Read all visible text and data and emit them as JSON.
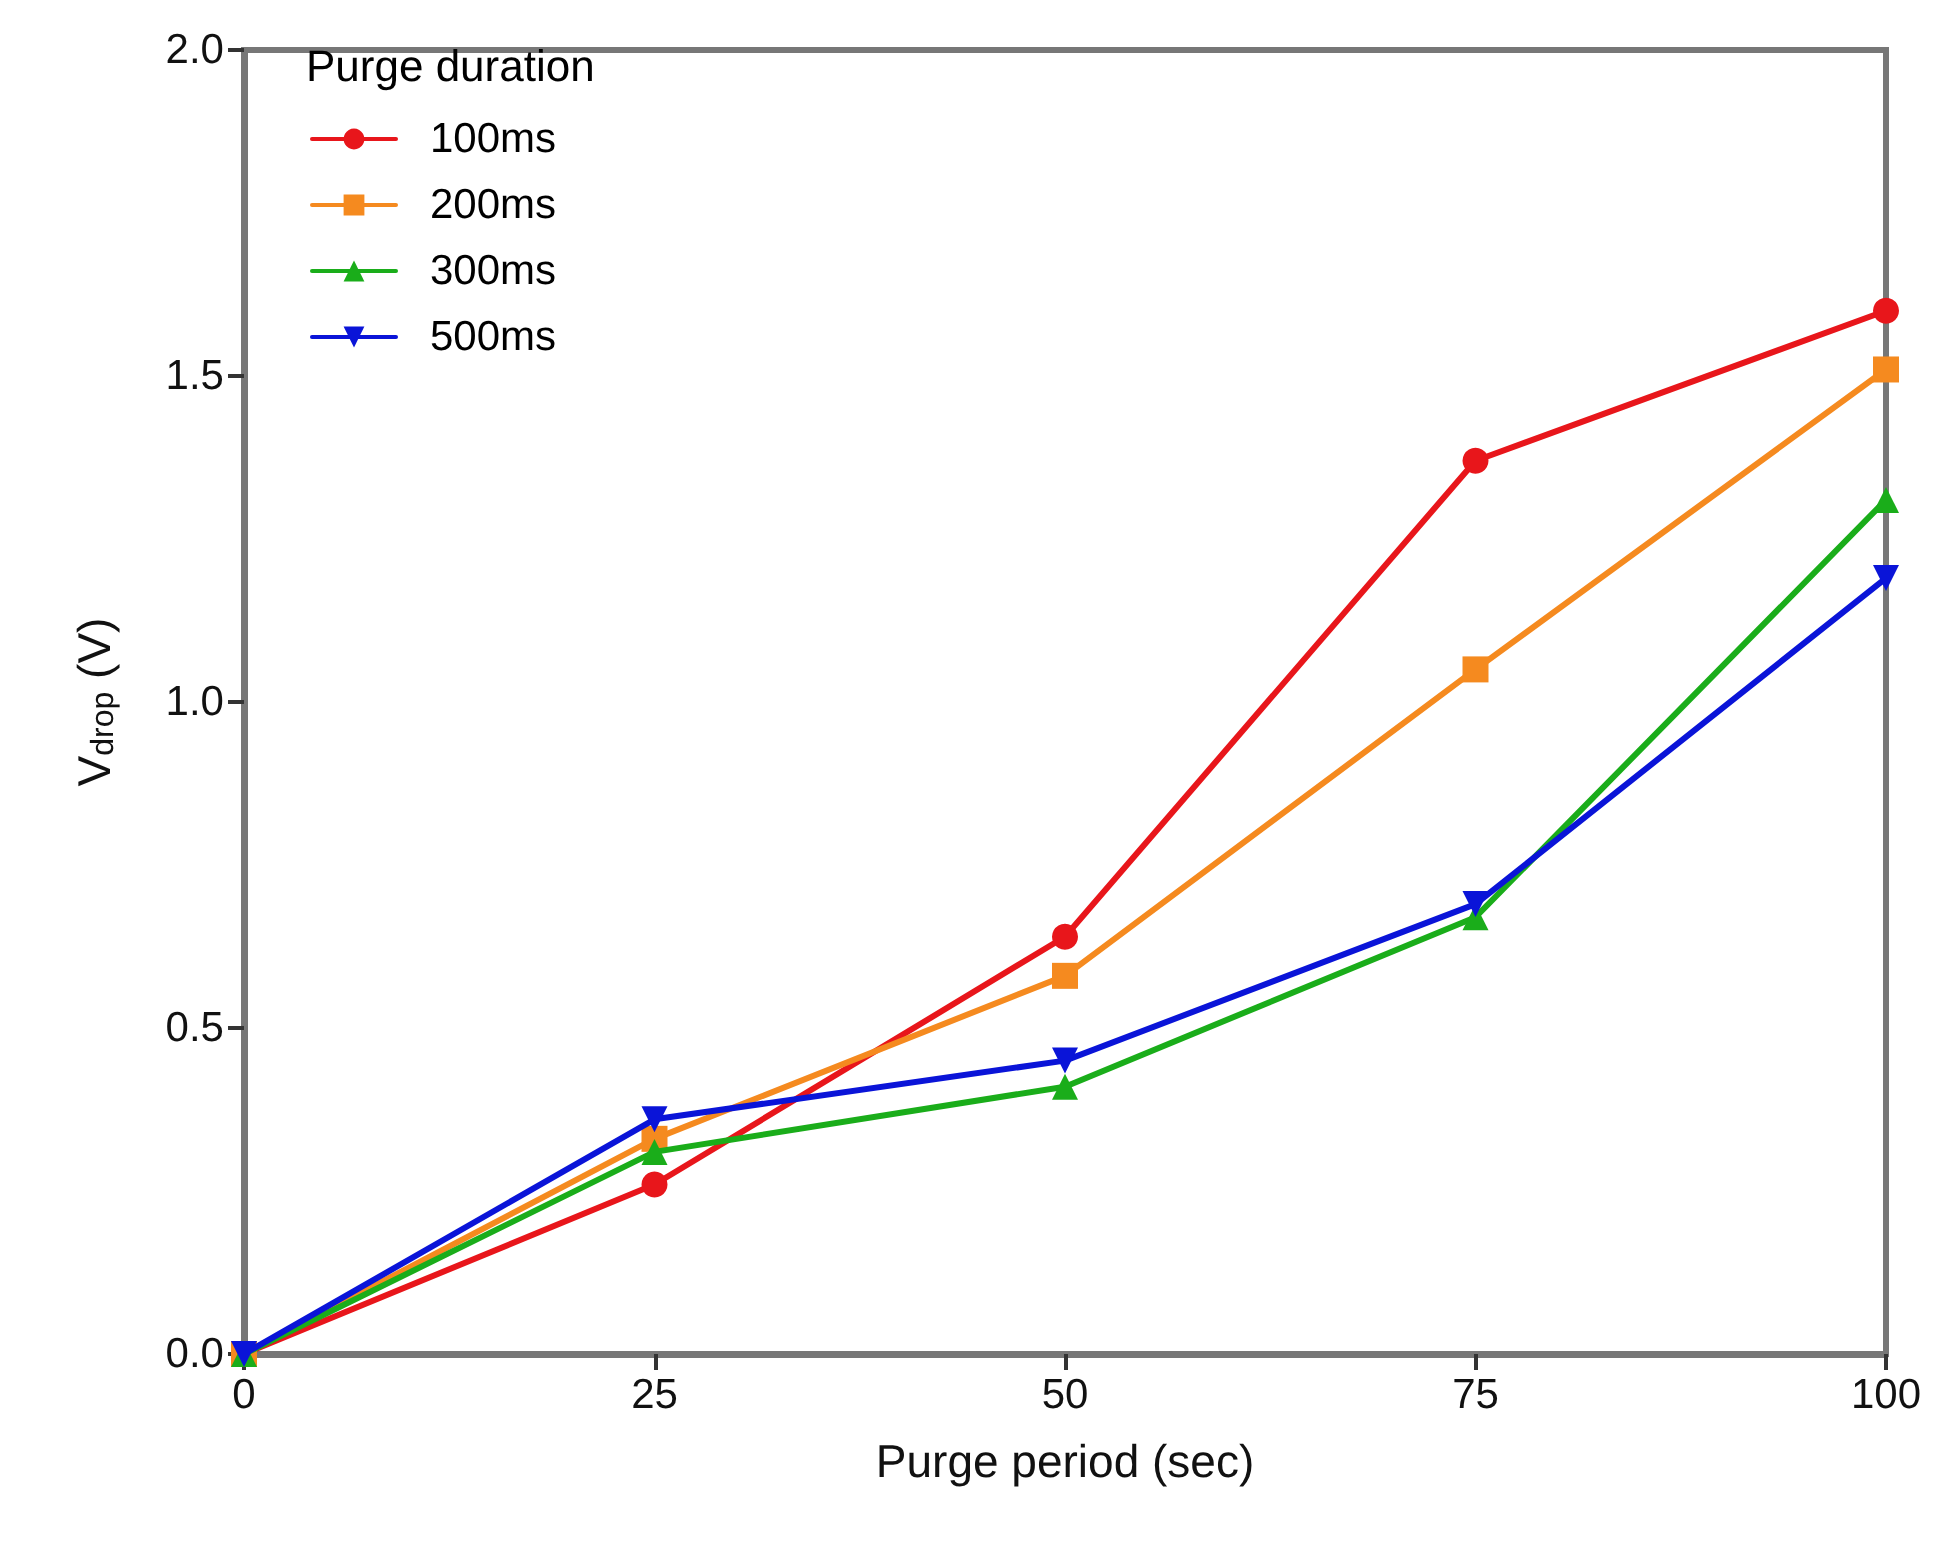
{
  "chart_data": {
    "type": "line",
    "xlabel": "Purge period (sec)",
    "ylabel": "V$_{drop}$ (V)",
    "legend_title": "Purge duration",
    "legend": "top left",
    "grid": false,
    "line_style": "solid",
    "x": [
      0,
      25,
      50,
      75,
      100
    ],
    "xlim": [
      0,
      100
    ],
    "xticks": [
      0,
      25,
      50,
      75,
      100
    ],
    "ylim": [
      0,
      2
    ],
    "yticks": [
      {
        "value": 0,
        "label": "0.0"
      },
      {
        "value": 0.5,
        "label": "0.5"
      },
      {
        "value": 1,
        "label": "1.0"
      },
      {
        "value": 1.5,
        "label": "1.5"
      },
      {
        "value": 2,
        "label": "2.0"
      }
    ],
    "series": [
      {
        "name": "100ms",
        "color": "#e8161b",
        "marker": "circle",
        "values": [
          0,
          0.26,
          0.64,
          1.37,
          1.6
        ]
      },
      {
        "name": "200ms",
        "color": "#f58a1f",
        "marker": "square",
        "values": [
          0,
          0.33,
          0.58,
          1.05,
          1.51
        ]
      },
      {
        "name": "300ms",
        "color": "#1aad1a",
        "marker": "triangle",
        "values": [
          0,
          0.31,
          0.41,
          0.67,
          1.31
        ]
      },
      {
        "name": "500ms",
        "color": "#0a14d8",
        "marker": "triangle-down",
        "values": [
          0,
          0.36,
          0.45,
          0.69,
          1.19
        ]
      }
    ]
  }
}
